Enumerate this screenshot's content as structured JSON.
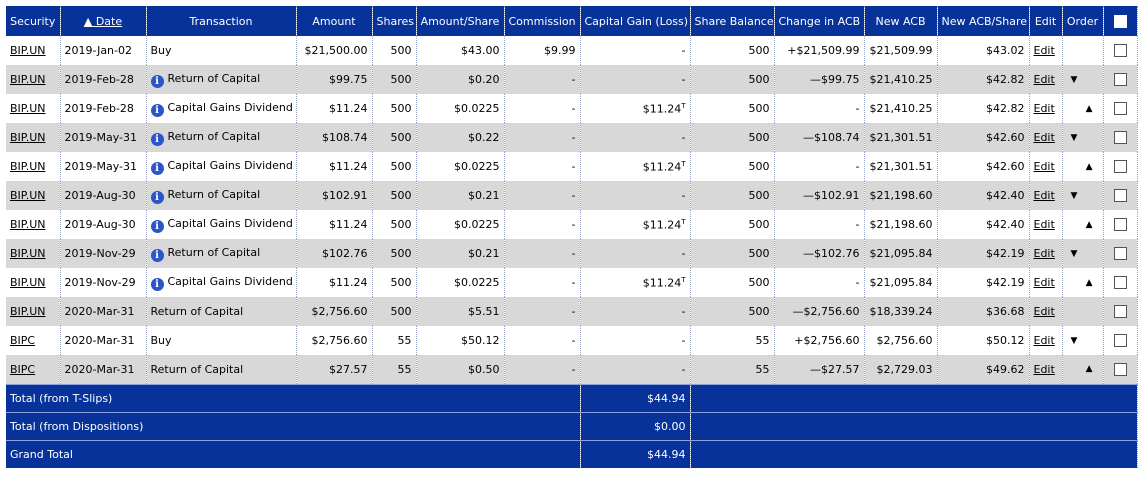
{
  "columns": {
    "security": "Security",
    "date": "▲ Date",
    "transaction": "Transaction",
    "amount": "Amount",
    "shares": "Shares",
    "amount_per_share": "Amount/Share",
    "commission": "Commission",
    "capital_gain": "Capital Gain (Loss)",
    "share_balance": "Share Balance",
    "change_acb": "Change in ACB",
    "new_acb": "New ACB",
    "new_acb_share": "New ACB/Share",
    "edit": "Edit",
    "order": "Order"
  },
  "edit_label": "Edit",
  "icons": {
    "info": "info-icon",
    "up": "arrow-up-icon",
    "down": "arrow-down-icon",
    "checkbox": "checkbox"
  },
  "rows": [
    {
      "security": "BIP.UN",
      "date": "2019-Jan-02",
      "info": false,
      "type": "Buy",
      "amount": "$21,500.00",
      "shares": "500",
      "aps": "$43.00",
      "commission": "$9.99",
      "gain": "-",
      "gain_sup": "",
      "balance": "500",
      "change": "+$21,509.99",
      "new_acb": "$21,509.99",
      "acb_share": "$43.02",
      "order": ""
    },
    {
      "security": "BIP.UN",
      "date": "2019-Feb-28",
      "info": true,
      "type": "Return of Capital",
      "amount": "$99.75",
      "shares": "500",
      "aps": "$0.20",
      "commission": "-",
      "gain": "-",
      "gain_sup": "",
      "balance": "500",
      "change": "—$99.75",
      "new_acb": "$21,410.25",
      "acb_share": "$42.82",
      "order": "▼"
    },
    {
      "security": "BIP.UN",
      "date": "2019-Feb-28",
      "info": true,
      "type": "Capital Gains Dividend",
      "amount": "$11.24",
      "shares": "500",
      "aps": "$0.0225",
      "commission": "-",
      "gain": "$11.24",
      "gain_sup": "T",
      "balance": "500",
      "change": "-",
      "new_acb": "$21,410.25",
      "acb_share": "$42.82",
      "order": "▲"
    },
    {
      "security": "BIP.UN",
      "date": "2019-May-31",
      "info": true,
      "type": "Return of Capital",
      "amount": "$108.74",
      "shares": "500",
      "aps": "$0.22",
      "commission": "-",
      "gain": "-",
      "gain_sup": "",
      "balance": "500",
      "change": "—$108.74",
      "new_acb": "$21,301.51",
      "acb_share": "$42.60",
      "order": "▼"
    },
    {
      "security": "BIP.UN",
      "date": "2019-May-31",
      "info": true,
      "type": "Capital Gains Dividend",
      "amount": "$11.24",
      "shares": "500",
      "aps": "$0.0225",
      "commission": "-",
      "gain": "$11.24",
      "gain_sup": "T",
      "balance": "500",
      "change": "-",
      "new_acb": "$21,301.51",
      "acb_share": "$42.60",
      "order": "▲"
    },
    {
      "security": "BIP.UN",
      "date": "2019-Aug-30",
      "info": true,
      "type": "Return of Capital",
      "amount": "$102.91",
      "shares": "500",
      "aps": "$0.21",
      "commission": "-",
      "gain": "-",
      "gain_sup": "",
      "balance": "500",
      "change": "—$102.91",
      "new_acb": "$21,198.60",
      "acb_share": "$42.40",
      "order": "▼"
    },
    {
      "security": "BIP.UN",
      "date": "2019-Aug-30",
      "info": true,
      "type": "Capital Gains Dividend",
      "amount": "$11.24",
      "shares": "500",
      "aps": "$0.0225",
      "commission": "-",
      "gain": "$11.24",
      "gain_sup": "T",
      "balance": "500",
      "change": "-",
      "new_acb": "$21,198.60",
      "acb_share": "$42.40",
      "order": "▲"
    },
    {
      "security": "BIP.UN",
      "date": "2019-Nov-29",
      "info": true,
      "type": "Return of Capital",
      "amount": "$102.76",
      "shares": "500",
      "aps": "$0.21",
      "commission": "-",
      "gain": "-",
      "gain_sup": "",
      "balance": "500",
      "change": "—$102.76",
      "new_acb": "$21,095.84",
      "acb_share": "$42.19",
      "order": "▼"
    },
    {
      "security": "BIP.UN",
      "date": "2019-Nov-29",
      "info": true,
      "type": "Capital Gains Dividend",
      "amount": "$11.24",
      "shares": "500",
      "aps": "$0.0225",
      "commission": "-",
      "gain": "$11.24",
      "gain_sup": "T",
      "balance": "500",
      "change": "-",
      "new_acb": "$21,095.84",
      "acb_share": "$42.19",
      "order": "▲"
    },
    {
      "security": "BIP.UN",
      "date": "2020-Mar-31",
      "info": false,
      "type": "Return of Capital",
      "amount": "$2,756.60",
      "shares": "500",
      "aps": "$5.51",
      "commission": "-",
      "gain": "-",
      "gain_sup": "",
      "balance": "500",
      "change": "—$2,756.60",
      "new_acb": "$18,339.24",
      "acb_share": "$36.68",
      "order": ""
    },
    {
      "security": "BIPC",
      "date": "2020-Mar-31",
      "info": false,
      "type": "Buy",
      "amount": "$2,756.60",
      "shares": "55",
      "aps": "$50.12",
      "commission": "-",
      "gain": "-",
      "gain_sup": "",
      "balance": "55",
      "change": "+$2,756.60",
      "new_acb": "$2,756.60",
      "acb_share": "$50.12",
      "order": "▼"
    },
    {
      "security": "BIPC",
      "date": "2020-Mar-31",
      "info": false,
      "type": "Return of Capital",
      "amount": "$27.57",
      "shares": "55",
      "aps": "$0.50",
      "commission": "-",
      "gain": "-",
      "gain_sup": "",
      "balance": "55",
      "change": "—$27.57",
      "new_acb": "$2,729.03",
      "acb_share": "$49.62",
      "order": "▲"
    }
  ],
  "totals": [
    {
      "label": "Total (from T-Slips)",
      "value": "$44.94"
    },
    {
      "label": "Total (from Dispositions)",
      "value": "$0.00"
    },
    {
      "label": "Grand Total",
      "value": "$44.94"
    }
  ],
  "colors": {
    "header_bg": "#06329a",
    "row_alt": "#d8d8d8",
    "info_icon": "#2b55c8"
  }
}
